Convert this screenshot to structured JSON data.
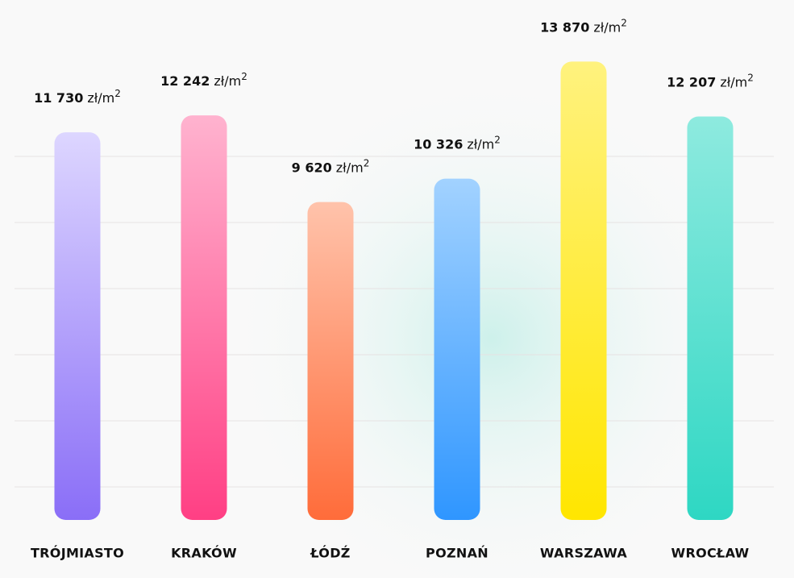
{
  "chart_data": {
    "type": "bar",
    "categories": [
      "TRÓJMIASTO",
      "KRAKÓW",
      "ŁÓDŹ",
      "POZNAŃ",
      "WARSZAWA",
      "WROCŁAW"
    ],
    "values": [
      11730,
      12242,
      9620,
      10326,
      13870,
      12207
    ],
    "value_labels": [
      "11 730",
      "12 242",
      "9 620",
      "10 326",
      "13 870",
      "12 207"
    ],
    "unit": "zł/m",
    "unit_exponent": "2",
    "gradients": [
      [
        "#ddd6ff",
        "#8a6ef7"
      ],
      [
        "#ffb3cf",
        "#ff3f84"
      ],
      [
        "#ffc3ab",
        "#ff6c3a"
      ],
      [
        "#a2d2ff",
        "#2f96ff"
      ],
      [
        "#fff27e",
        "#ffe600"
      ],
      [
        "#8eeadf",
        "#2ed7c3"
      ]
    ],
    "ylim": [
      0,
      14000
    ],
    "yticks": [
      1000,
      3000,
      5000,
      7000,
      9000,
      11000
    ],
    "grid": true,
    "show_tick_labels": false
  }
}
